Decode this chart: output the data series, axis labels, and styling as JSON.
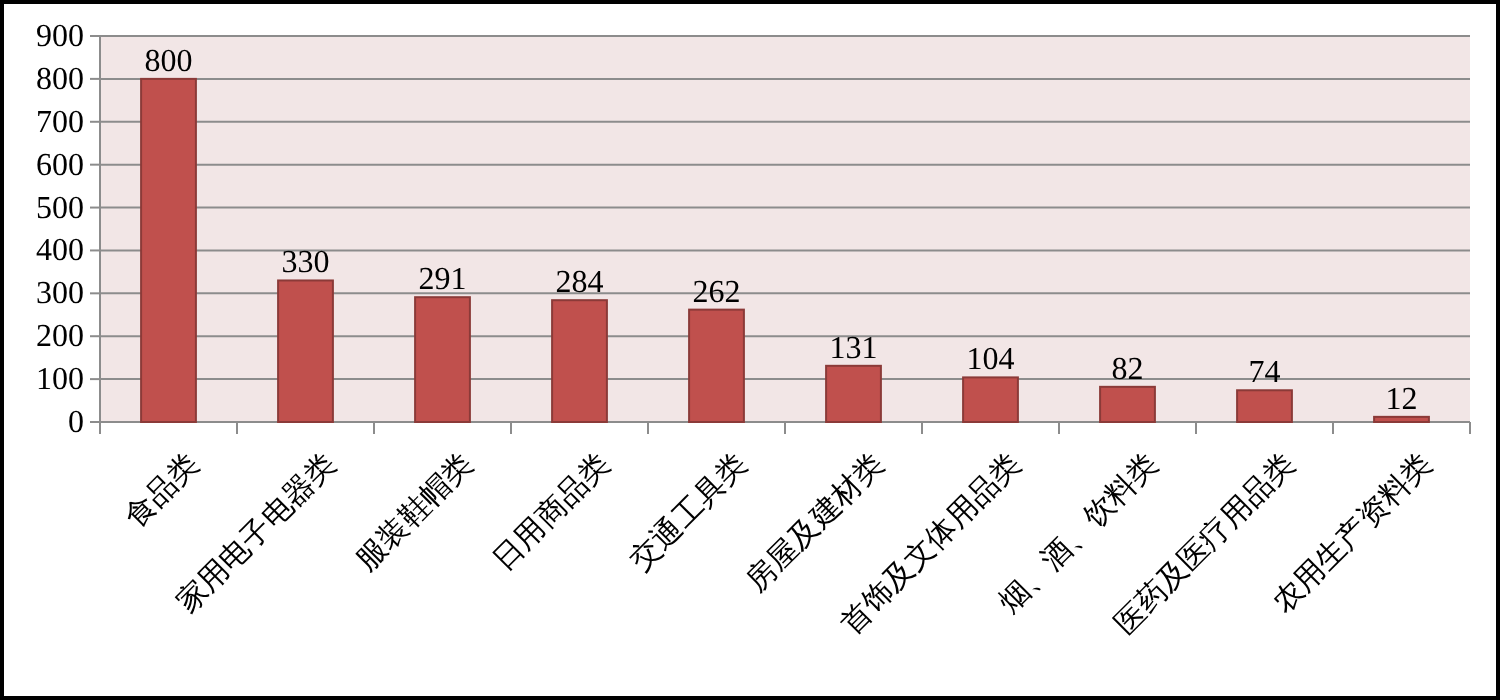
{
  "chart_data": {
    "type": "bar",
    "categories": [
      "食品类",
      "家用电子电器类",
      "服装鞋帽类",
      "日用商品类",
      "交通工具类",
      "房屋及建材类",
      "首饰及文体用品类",
      "烟、酒、饮料类",
      "医药及医疗用品类",
      "农用生产资料类"
    ],
    "values": [
      800,
      330,
      291,
      284,
      262,
      131,
      104,
      82,
      74,
      12
    ],
    "color": "#c0504d",
    "ylim": [
      0,
      900
    ],
    "yticks": [
      0,
      100,
      200,
      300,
      400,
      500,
      600,
      700,
      800,
      900
    ],
    "grid": "y",
    "data_labels": true
  }
}
